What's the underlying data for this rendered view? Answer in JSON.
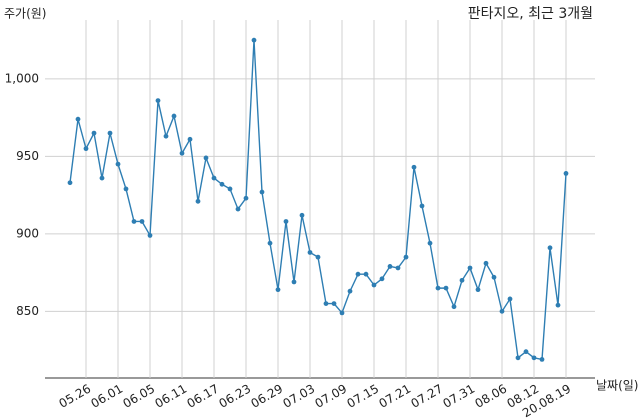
{
  "chart_data": {
    "type": "line",
    "title": "판타지오, 최근 3개월",
    "ylabel": "주가(원)",
    "xlabel": "날짜(일)",
    "categories": [
      null,
      null,
      "05.26",
      null,
      null,
      null,
      "06.01",
      null,
      null,
      null,
      "06.05",
      null,
      null,
      null,
      "06.11",
      null,
      null,
      null,
      "06.17",
      null,
      null,
      null,
      "06.23",
      null,
      null,
      null,
      "06.29",
      null,
      null,
      null,
      "07.03",
      null,
      null,
      null,
      "07.09",
      null,
      null,
      null,
      "07.15",
      null,
      null,
      null,
      "07.21",
      null,
      null,
      null,
      "07.27",
      null,
      null,
      null,
      "07.31",
      null,
      null,
      null,
      "08.06",
      null,
      null,
      null,
      "08.12",
      null,
      null,
      null,
      "20.08.19"
    ],
    "values": [
      933,
      974,
      955,
      965,
      936,
      965,
      945,
      929,
      908,
      908,
      899,
      986,
      963,
      976,
      952,
      961,
      921,
      949,
      936,
      932,
      929,
      916,
      923,
      1025,
      927,
      894,
      864,
      908,
      869,
      912,
      888,
      885,
      855,
      855,
      849,
      863,
      874,
      874,
      867,
      871,
      879,
      878,
      885,
      943,
      918,
      894,
      865,
      865,
      853,
      870,
      878,
      864,
      881,
      872,
      850,
      858,
      820,
      824,
      820,
      819,
      891,
      854,
      939
    ],
    "color": "#2e7eb3",
    "ylim": [
      807,
      1038
    ],
    "yticks": [
      850,
      900,
      950,
      {
        "value": 1000,
        "label": "1,000"
      }
    ],
    "grid": true
  }
}
